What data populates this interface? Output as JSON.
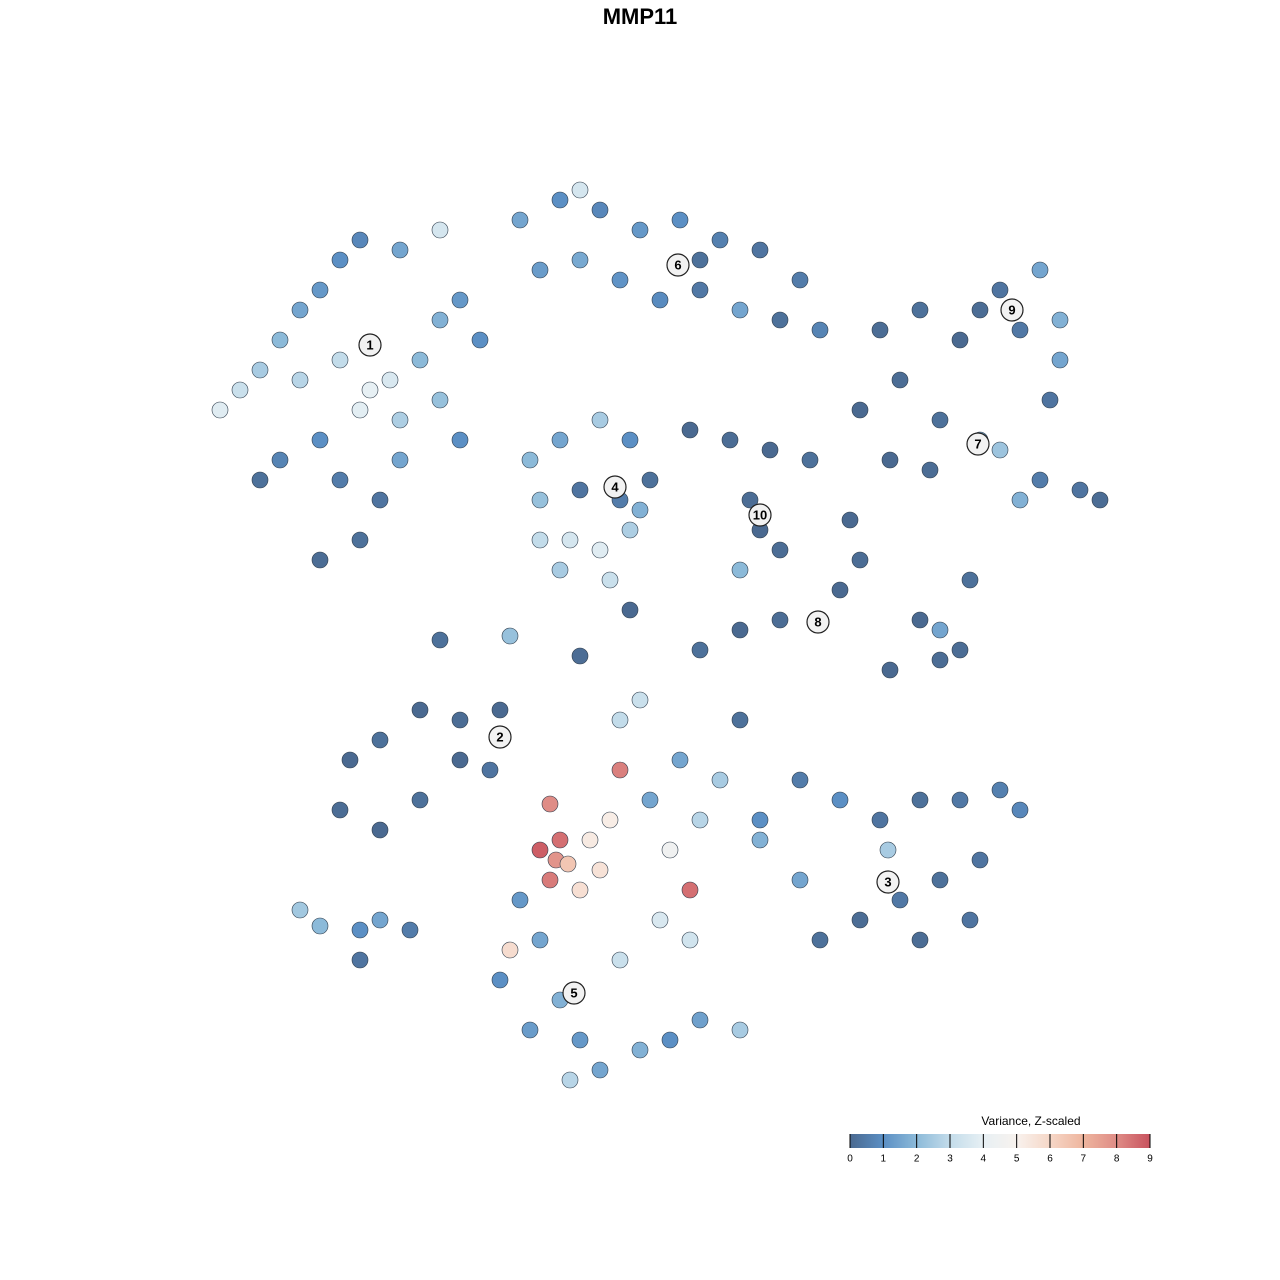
{
  "chart_data": {
    "type": "scatter",
    "title": "MMP11",
    "xlim": [
      -32,
      32
    ],
    "ylim": [
      -32,
      32
    ],
    "x": [
      -21,
      -20,
      -19,
      -18,
      -17,
      -16,
      -15,
      -14,
      -12,
      -10,
      -17,
      -15,
      -13.5,
      -12.5,
      -14,
      -12,
      -11,
      -10,
      -9,
      -8,
      -16,
      -15,
      -13,
      -14,
      -16,
      -12,
      -10,
      -9,
      -18,
      -19,
      -6,
      -4,
      -2,
      0,
      2,
      4,
      6,
      8,
      -5,
      -3,
      -1,
      1,
      3,
      5,
      7,
      9,
      -3,
      3,
      -5.5,
      -4,
      -2,
      -0.5,
      0.5,
      -1,
      -3,
      -5,
      -5,
      -3.5,
      -2,
      -0.5,
      -4,
      -1.5,
      0,
      2.5,
      4.5,
      6.5,
      8.5,
      5.5,
      6,
      7,
      5,
      12,
      14,
      16,
      18,
      20,
      21,
      21,
      19,
      17,
      20.5,
      11,
      13,
      15,
      17,
      18,
      20,
      22,
      23,
      19,
      14.5,
      12.5,
      10.5,
      11,
      10,
      7,
      5,
      3,
      14,
      15,
      16,
      15,
      12.5,
      16.5,
      -7,
      -9,
      -11,
      -13,
      -14.5,
      -15,
      -13,
      -11,
      -9,
      -7.5,
      -4.5,
      -4,
      -5,
      -4.2,
      -3.6,
      -2.5,
      -2,
      -4.5,
      -3,
      -1.5,
      1.5,
      -1,
      2.5,
      -1,
      0,
      8,
      10,
      12,
      14,
      16,
      18,
      19,
      17,
      15,
      13,
      11,
      9,
      8,
      12.4,
      14,
      16.5,
      6,
      2,
      4,
      6,
      3,
      0.5,
      5,
      -6,
      -5,
      -7,
      -4,
      -3,
      -2,
      0,
      1.5,
      3,
      5,
      -1,
      1,
      2.5,
      -5.5,
      -3.5,
      -6.5,
      -17,
      -16,
      -14,
      -13,
      -14,
      -11.5,
      -10,
      -6.5,
      -3,
      -0.5
    ],
    "y": [
      11.5,
      12.5,
      13.5,
      15,
      16.5,
      17.5,
      19,
      20,
      19.5,
      20.5,
      13,
      14,
      12.5,
      13,
      11.5,
      11,
      14,
      16,
      17,
      15,
      10,
      8,
      7,
      5,
      4,
      9,
      12,
      10,
      9,
      8,
      21,
      22,
      21.5,
      20.5,
      21,
      20,
      19.5,
      18,
      18.5,
      19,
      18,
      17,
      17.5,
      16.5,
      16,
      15.5,
      22.5,
      19,
      9,
      10,
      11,
      10,
      8,
      7,
      7.5,
      7,
      5,
      5,
      4.5,
      5.5,
      3.5,
      3,
      6.5,
      10.5,
      10,
      9.5,
      9,
      7,
      5.5,
      4.5,
      3.5,
      15.5,
      16.5,
      15,
      17.5,
      18.5,
      16,
      14,
      15.5,
      16.5,
      12,
      11.5,
      13,
      11,
      10,
      9.5,
      8,
      7.5,
      7,
      7,
      8.5,
      9,
      6,
      4,
      2.5,
      1,
      0.5,
      -0.5,
      1,
      -1,
      -0.5,
      0.5,
      -1.5,
      3,
      -3.5,
      -4,
      -3.5,
      -5,
      -6,
      -8.5,
      -9.5,
      -8,
      -6,
      -6.5,
      -8.2,
      -10,
      -10.5,
      -11,
      -11.2,
      -10,
      -11.5,
      -12,
      -12.5,
      -9,
      -10.5,
      -6.5,
      -12.5,
      -4,
      -3,
      -7,
      -8,
      -9,
      -8,
      -8,
      -7.5,
      -8.5,
      -11,
      -12,
      -13,
      -14,
      -15,
      -12,
      -10.5,
      -15,
      -14,
      -9,
      -6,
      -7,
      -10,
      -9,
      -8,
      -4,
      -13,
      -15,
      -17,
      -18,
      -20,
      -21.5,
      -20.5,
      -20,
      -19,
      -19.5,
      -16,
      -14,
      -15,
      -19.5,
      -22,
      -15.5,
      -13.5,
      -14.3,
      -14.5,
      -14,
      -16,
      -14.5,
      0,
      0.2,
      -0.8,
      1.5
    ],
    "values": [
      3.8,
      3.2,
      2.5,
      2,
      1.5,
      1.2,
      1,
      0.8,
      1.5,
      3.5,
      2.8,
      3,
      4,
      3.6,
      3.9,
      2.6,
      2,
      1.8,
      1.2,
      1,
      1,
      0.5,
      0.3,
      0.2,
      0.1,
      1.5,
      2.2,
      1,
      0.7,
      0.2,
      1.5,
      1,
      0.8,
      1.2,
      1,
      0.6,
      0.3,
      0.5,
      1.3,
      1.6,
      1.1,
      0.9,
      0.4,
      1.5,
      0.2,
      0.7,
      3.5,
      0.2,
      2,
      1.5,
      2.5,
      1,
      0.2,
      0.5,
      0.3,
      2.2,
      3,
      3.5,
      3.8,
      2.6,
      2.5,
      3.2,
      1.8,
      0,
      0.1,
      0,
      0.2,
      0.1,
      0,
      0.1,
      2,
      0.1,
      0.2,
      0,
      0.3,
      1.5,
      1.8,
      1.5,
      0.4,
      0.1,
      0.3,
      0,
      0.1,
      0.2,
      1.5,
      2.3,
      0.5,
      0.3,
      0.1,
      1.8,
      0.1,
      0,
      0,
      0.1,
      0,
      0.1,
      0,
      0.2,
      0,
      0.1,
      0.1,
      1.5,
      0,
      0.2,
      0,
      0.1,
      0,
      0.2,
      0,
      0.1,
      0,
      0.2,
      0,
      0.3,
      8,
      8.5,
      8.8,
      7.8,
      6.5,
      5.3,
      5.6,
      8.3,
      5.7,
      5.2,
      4.5,
      8.2,
      8.5,
      3,
      3.2,
      0.5,
      1,
      0.3,
      0.2,
      0.4,
      0.6,
      0.8,
      0.3,
      0.2,
      0.4,
      0.1,
      0.2,
      1.5,
      2.5,
      0.1,
      0.3,
      1,
      1.5,
      2.5,
      1.8,
      2.8,
      1.5,
      0.2,
      1.2,
      1.5,
      1,
      1.8,
      1.2,
      1.5,
      1.8,
      1,
      1.4,
      2.5,
      3.2,
      3.6,
      3.4,
      1.3,
      2.8,
      5.8,
      2.4,
      2,
      1,
      1.5,
      0.3,
      0.5,
      0.2,
      2.2,
      0.1,
      0
    ],
    "annotations": [
      {
        "text": "1",
        "x": -13.5,
        "y": 14.75
      },
      {
        "text": "6",
        "x": 1.9,
        "y": 18.75
      },
      {
        "text": "4",
        "x": -1.25,
        "y": 7.65
      },
      {
        "text": "10",
        "x": 6,
        "y": 6.25
      },
      {
        "text": "9",
        "x": 18.6,
        "y": 16.5
      },
      {
        "text": "7",
        "x": 16.9,
        "y": 9.8
      },
      {
        "text": "8",
        "x": 8.9,
        "y": 0.9
      },
      {
        "text": "2",
        "x": -7,
        "y": -4.85
      },
      {
        "text": "3",
        "x": 12.4,
        "y": -12.1
      },
      {
        "text": "5",
        "x": -3.3,
        "y": -17.65
      }
    ],
    "colorbar": {
      "title": "Variance, Z-scaled",
      "clim": [
        0,
        9
      ],
      "ticks": [
        0,
        1,
        2,
        3,
        4,
        5,
        6,
        7,
        8,
        9
      ],
      "colormap": [
        "#4a6990",
        "#5b8fc4",
        "#8cbad9",
        "#c3dcea",
        "#e7f0f4",
        "#f8f2ee",
        "#f6d7c7",
        "#eeb59e",
        "#df8c86",
        "#c8525e"
      ]
    }
  }
}
